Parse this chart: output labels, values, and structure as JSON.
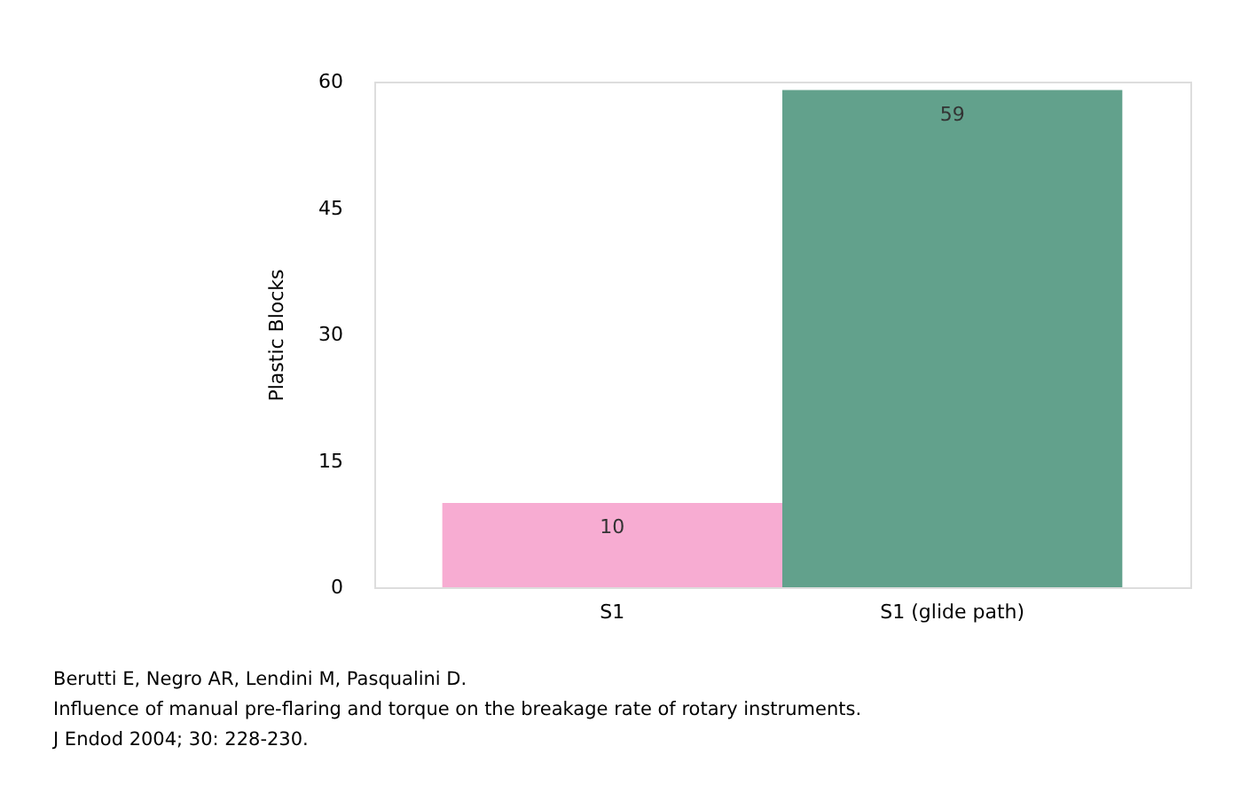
{
  "chart_data": {
    "type": "bar",
    "ylabel": "Plastic Blocks",
    "categories": [
      "S1",
      "S1 (glide path)"
    ],
    "values": [
      10,
      59
    ],
    "colors": [
      "#f7a8d0",
      "#5a9c86"
    ],
    "ylim": [
      0,
      60
    ],
    "yticks": [
      0,
      15,
      30,
      45,
      60
    ],
    "grid": false,
    "data_labels": true,
    "annotations": [
      "Berutti E, Negro AR, Lendini M, Pasqualini D.",
      "Influence of manual pre-flaring and torque on the breakage rate of rotary instruments.",
      "J Endod 2004; 30: 228-230."
    ]
  }
}
